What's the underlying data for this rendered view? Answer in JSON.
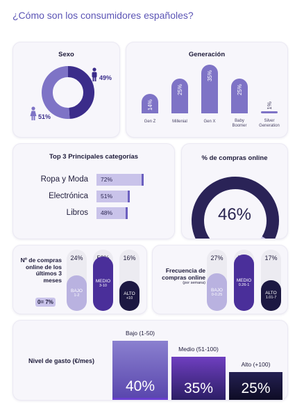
{
  "title": "¿Cómo son los consumidores españoles?",
  "colors": {
    "accent": "#5b54b5",
    "light": "#c9c3ea",
    "mid": "#7e73c6",
    "dark": "#3b2c8a",
    "darkest": "#1c1842"
  },
  "sexo": {
    "title": "Sexo",
    "male_label": "49%",
    "female_label": "51%",
    "male_icon": "male-person-icon",
    "female_icon": "female-person-icon"
  },
  "generacion": {
    "title": "Generación"
  },
  "top3": {
    "title": "Top 3 Principales categorías"
  },
  "online": {
    "title": "% de compras online",
    "value_label": "46%"
  },
  "num_compras": {
    "question": "Nº de compras online de los últimos 3 meses",
    "zero_label": "0= 7%",
    "items": [
      {
        "pct": "24%",
        "name": "BAJO",
        "range": "1-2"
      },
      {
        "pct": "53%",
        "name": "MEDIO",
        "range": "3-10"
      },
      {
        "pct": "16%",
        "name": "ALTO",
        "range": "+10"
      }
    ]
  },
  "frecuencia": {
    "question": "Frecuencia de compras online",
    "sub": "(por semana)",
    "items": [
      {
        "pct": "27%",
        "name": "BAJO",
        "range": "0-0.25"
      },
      {
        "pct": "56%",
        "name": "MEDIO",
        "range": "0.26-1"
      },
      {
        "pct": "17%",
        "name": "ALTO",
        "range": "1.01-7"
      }
    ]
  },
  "gasto": {
    "label": "Nivel de gasto (€/mes)"
  },
  "chart_data": [
    {
      "type": "pie",
      "title": "Sexo",
      "categories": [
        "Hombres",
        "Mujeres"
      ],
      "values": [
        49,
        51
      ]
    },
    {
      "type": "bar",
      "title": "Generación",
      "categories": [
        "Gen Z",
        "Millenial",
        "Gen X",
        "Baby\nBoomer",
        "Silver\nGeneration"
      ],
      "values": [
        14,
        25,
        35,
        25,
        1
      ],
      "labels": [
        "14%",
        "25%",
        "35%",
        "25%",
        "1%"
      ]
    },
    {
      "type": "bar",
      "title": "Top 3 Principales categorías",
      "categories": [
        "Ropa y Moda",
        "Electrónica",
        "Libros"
      ],
      "values": [
        72,
        51,
        48
      ],
      "labels": [
        "72%",
        "51%",
        "48%"
      ]
    },
    {
      "type": "pie",
      "title": "% de compras online",
      "values": [
        46
      ]
    },
    {
      "type": "bar",
      "title": "Nº de compras online de los últimos 3 meses",
      "categories": [
        "BAJO 1-2",
        "MEDIO 3-10",
        "ALTO +10"
      ],
      "values": [
        24,
        53,
        16
      ]
    },
    {
      "type": "bar",
      "title": "Frecuencia de compras online (por semana)",
      "categories": [
        "BAJO 0-0.25",
        "MEDIO 0.26-1",
        "ALTO 1.01-7"
      ],
      "values": [
        27,
        56,
        17
      ]
    },
    {
      "type": "bar",
      "title": "Nivel de gasto (€/mes)",
      "categories": [
        "Bajo (1-50)",
        "Medio (51-100)",
        "Alto (+100)"
      ],
      "values": [
        40,
        35,
        25
      ],
      "labels": [
        "40%",
        "35%",
        "25%"
      ]
    }
  ]
}
